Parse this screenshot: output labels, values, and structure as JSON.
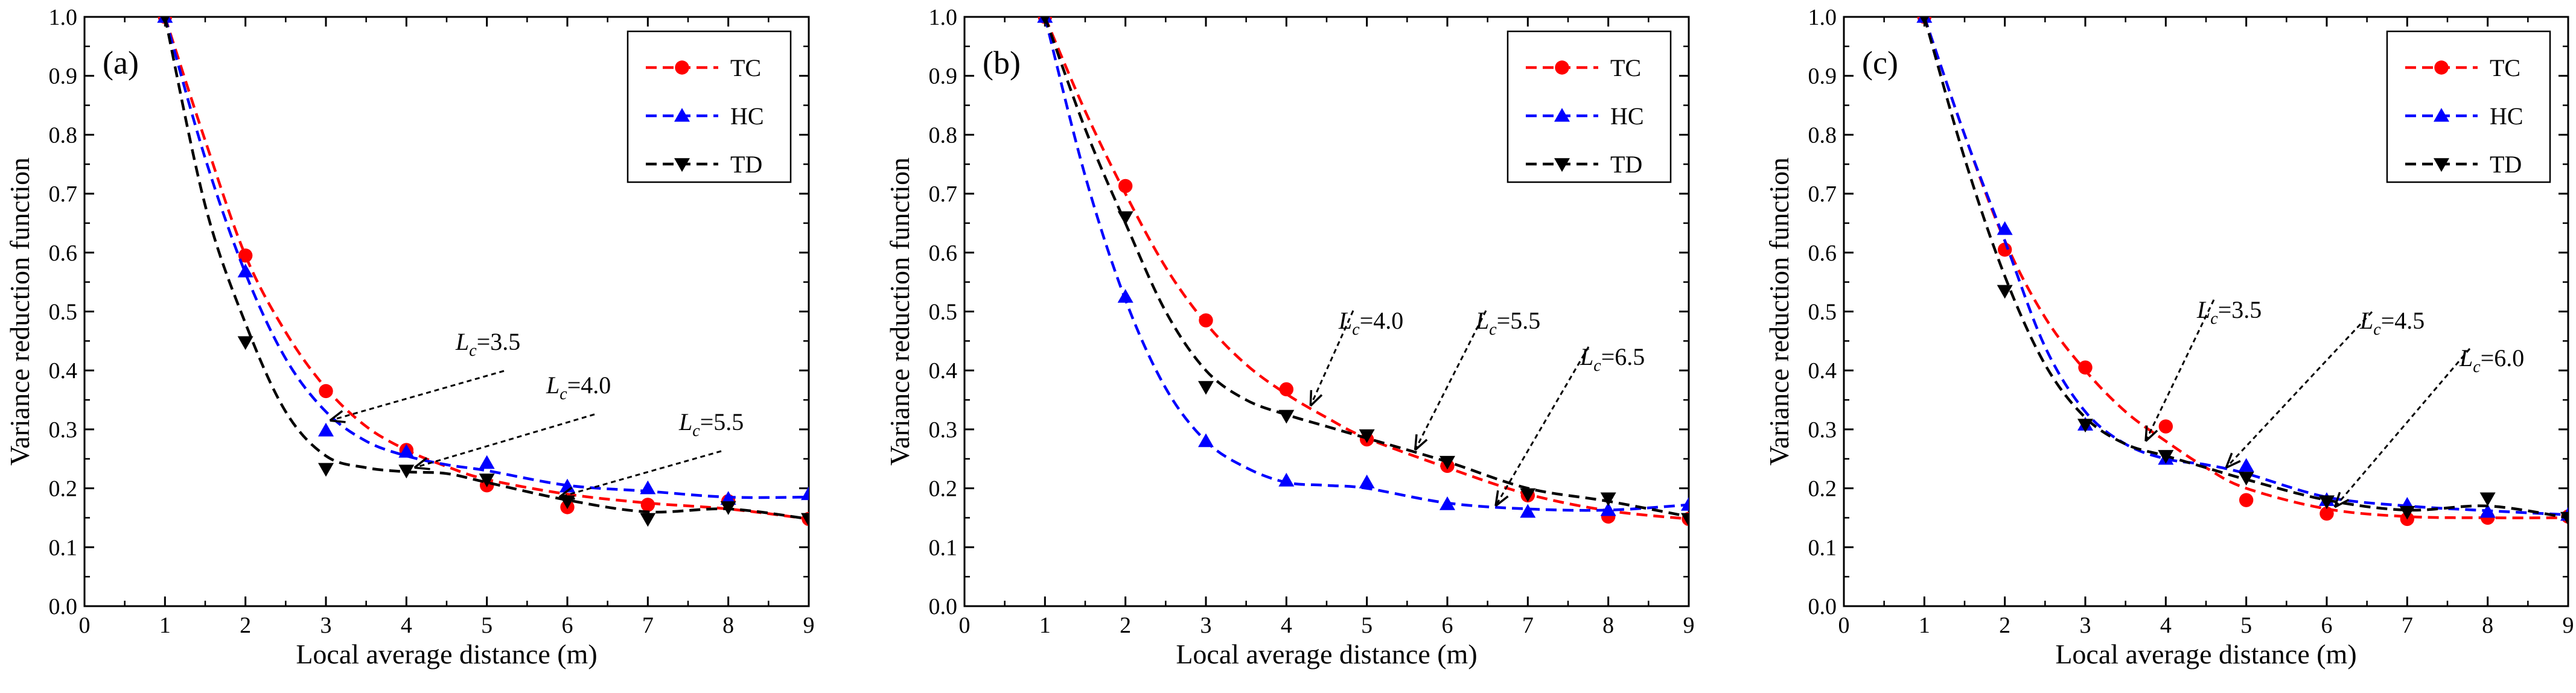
{
  "figure": {
    "panels": [
      {
        "label": "(a)",
        "annotations": [
          {
            "prefix": "L",
            "sub": "c",
            "suffix": "=3.5"
          },
          {
            "prefix": "L",
            "sub": "c",
            "suffix": "=4.0"
          },
          {
            "prefix": "L",
            "sub": "c",
            "suffix": "=5.5"
          }
        ]
      },
      {
        "label": "(b)",
        "annotations": [
          {
            "prefix": "L",
            "sub": "c",
            "suffix": "=4.0"
          },
          {
            "prefix": "L",
            "sub": "c",
            "suffix": "=5.5"
          },
          {
            "prefix": "L",
            "sub": "c",
            "suffix": "=6.5"
          }
        ]
      },
      {
        "label": "(c)",
        "annotations": [
          {
            "prefix": "L",
            "sub": "c",
            "suffix": "=3.5"
          },
          {
            "prefix": "L",
            "sub": "c",
            "suffix": "=4.5"
          },
          {
            "prefix": "L",
            "sub": "c",
            "suffix": "=6.0"
          }
        ]
      }
    ]
  },
  "chart_data": [
    {
      "type": "line",
      "title": "(a)",
      "xlabel": "Local average distance (m)",
      "ylabel": "Variance reduction function",
      "xlim": [
        0,
        9
      ],
      "ylim": [
        0,
        1.0
      ],
      "xticks": [
        "0",
        "1",
        "2",
        "3",
        "4",
        "5",
        "6",
        "7",
        "8",
        "9"
      ],
      "yticks": [
        "0.0",
        "0.1",
        "0.2",
        "0.3",
        "0.4",
        "0.5",
        "0.6",
        "0.7",
        "0.8",
        "0.9",
        "1.0"
      ],
      "legend_position": "top-right",
      "series": [
        {
          "name": "TC",
          "color": "#ff0000",
          "marker": "circle",
          "x": [
            1,
            2,
            3,
            4,
            5,
            6,
            7,
            8,
            9
          ],
          "y": [
            1.0,
            0.595,
            0.365,
            0.265,
            0.205,
            0.168,
            0.172,
            0.178,
            0.148
          ],
          "fit": [
            [
              1,
              1.0
            ],
            [
              1.5,
              0.79
            ],
            [
              2,
              0.595
            ],
            [
              2.5,
              0.465
            ],
            [
              3,
              0.37
            ],
            [
              3.5,
              0.305
            ],
            [
              4,
              0.265
            ],
            [
              4.5,
              0.237
            ],
            [
              5,
              0.215
            ],
            [
              6,
              0.19
            ],
            [
              7,
              0.175
            ],
            [
              8,
              0.165
            ],
            [
              9,
              0.148
            ]
          ]
        },
        {
          "name": "HC",
          "color": "#0000ff",
          "marker": "triangle-up",
          "x": [
            1,
            2,
            3,
            4,
            5,
            6,
            7,
            8,
            9
          ],
          "y": [
            1.0,
            0.568,
            0.298,
            0.262,
            0.243,
            0.203,
            0.2,
            0.182,
            0.19
          ],
          "fit": [
            [
              1,
              1.0
            ],
            [
              1.5,
              0.76
            ],
            [
              2,
              0.565
            ],
            [
              2.5,
              0.42
            ],
            [
              3,
              0.33
            ],
            [
              3.5,
              0.28
            ],
            [
              4,
              0.255
            ],
            [
              4.5,
              0.24
            ],
            [
              5,
              0.23
            ],
            [
              6,
              0.205
            ],
            [
              7,
              0.195
            ],
            [
              8,
              0.185
            ],
            [
              9,
              0.185
            ]
          ]
        },
        {
          "name": "TD",
          "color": "#000000",
          "marker": "triangle-down",
          "x": [
            1,
            2,
            3,
            4,
            5,
            6,
            7,
            8,
            9
          ],
          "y": [
            1.0,
            0.448,
            0.233,
            0.23,
            0.215,
            0.178,
            0.148,
            0.168,
            0.148
          ],
          "fit": [
            [
              1,
              1.0
            ],
            [
              1.5,
              0.68
            ],
            [
              2,
              0.48
            ],
            [
              2.5,
              0.33
            ],
            [
              3,
              0.255
            ],
            [
              3.5,
              0.235
            ],
            [
              4,
              0.228
            ],
            [
              4.5,
              0.225
            ],
            [
              5,
              0.21
            ],
            [
              6,
              0.18
            ],
            [
              7,
              0.16
            ],
            [
              8,
              0.165
            ],
            [
              9,
              0.148
            ]
          ]
        }
      ],
      "annotations": [
        {
          "text": "Lc=3.5",
          "arrow_to": [
            3.05,
            0.315
          ]
        },
        {
          "text": "Lc=4.0",
          "arrow_to": [
            4.1,
            0.235
          ]
        },
        {
          "text": "Lc=5.5",
          "arrow_to": [
            5.9,
            0.185
          ]
        }
      ]
    },
    {
      "type": "line",
      "title": "(b)",
      "xlabel": "Local average distance (m)",
      "ylabel": "Variance reduction function",
      "xlim": [
        0,
        9
      ],
      "ylim": [
        0,
        1.0
      ],
      "xticks": [
        "0",
        "1",
        "2",
        "3",
        "4",
        "5",
        "6",
        "7",
        "8",
        "9"
      ],
      "yticks": [
        "0.0",
        "0.1",
        "0.2",
        "0.3",
        "0.4",
        "0.5",
        "0.6",
        "0.7",
        "0.8",
        "0.9",
        "1.0"
      ],
      "legend_position": "top-right",
      "series": [
        {
          "name": "TC",
          "color": "#ff0000",
          "marker": "circle",
          "x": [
            1,
            2,
            3,
            4,
            5,
            6,
            7,
            8,
            9
          ],
          "y": [
            1.0,
            0.713,
            0.485,
            0.368,
            0.283,
            0.238,
            0.188,
            0.152,
            0.148
          ],
          "fit": [
            [
              1,
              1.0
            ],
            [
              1.5,
              0.84
            ],
            [
              2,
              0.7
            ],
            [
              2.5,
              0.575
            ],
            [
              3,
              0.48
            ],
            [
              3.5,
              0.41
            ],
            [
              4,
              0.36
            ],
            [
              4.5,
              0.32
            ],
            [
              5,
              0.285
            ],
            [
              6,
              0.235
            ],
            [
              7,
              0.19
            ],
            [
              8,
              0.162
            ],
            [
              9,
              0.148
            ]
          ]
        },
        {
          "name": "HC",
          "color": "#0000ff",
          "marker": "triangle-up",
          "x": [
            1,
            2,
            3,
            4,
            5,
            6,
            7,
            8,
            9
          ],
          "y": [
            1.0,
            0.525,
            0.28,
            0.213,
            0.21,
            0.173,
            0.16,
            0.163,
            0.172
          ],
          "fit": [
            [
              1,
              1.0
            ],
            [
              1.5,
              0.73
            ],
            [
              2,
              0.52
            ],
            [
              2.5,
              0.37
            ],
            [
              3,
              0.28
            ],
            [
              3.5,
              0.235
            ],
            [
              4,
              0.21
            ],
            [
              4.5,
              0.205
            ],
            [
              5,
              0.2
            ],
            [
              6,
              0.175
            ],
            [
              7,
              0.165
            ],
            [
              8,
              0.163
            ],
            [
              9,
              0.172
            ]
          ]
        },
        {
          "name": "TD",
          "color": "#000000",
          "marker": "triangle-down",
          "x": [
            1,
            2,
            3,
            4,
            5,
            6,
            7,
            8,
            9
          ],
          "y": [
            1.0,
            0.66,
            0.372,
            0.323,
            0.29,
            0.245,
            0.19,
            0.183,
            0.148
          ],
          "fit": [
            [
              1,
              1.0
            ],
            [
              1.5,
              0.81
            ],
            [
              2,
              0.65
            ],
            [
              2.5,
              0.5
            ],
            [
              3,
              0.4
            ],
            [
              3.5,
              0.35
            ],
            [
              4,
              0.325
            ],
            [
              4.5,
              0.305
            ],
            [
              5,
              0.285
            ],
            [
              6,
              0.245
            ],
            [
              7,
              0.2
            ],
            [
              8,
              0.178
            ],
            [
              9,
              0.152
            ]
          ]
        }
      ],
      "annotations": [
        {
          "text": "Lc=4.0",
          "arrow_to": [
            4.3,
            0.34
          ]
        },
        {
          "text": "Lc=5.5",
          "arrow_to": [
            5.6,
            0.265
          ]
        },
        {
          "text": "Lc=6.5",
          "arrow_to": [
            6.6,
            0.17
          ]
        }
      ]
    },
    {
      "type": "line",
      "title": "(c)",
      "xlabel": "Local average distance (m)",
      "ylabel": "Variance reduction function",
      "xlim": [
        0,
        9
      ],
      "ylim": [
        0,
        1.0
      ],
      "xticks": [
        "0",
        "1",
        "2",
        "3",
        "4",
        "5",
        "6",
        "7",
        "8",
        "9"
      ],
      "yticks": [
        "0.0",
        "0.1",
        "0.2",
        "0.3",
        "0.4",
        "0.5",
        "0.6",
        "0.7",
        "0.8",
        "0.9",
        "1.0"
      ],
      "legend_position": "top-right",
      "series": [
        {
          "name": "TC",
          "color": "#ff0000",
          "marker": "circle",
          "x": [
            1,
            2,
            3,
            4,
            5,
            6,
            7,
            8,
            9
          ],
          "y": [
            1.0,
            0.605,
            0.405,
            0.305,
            0.18,
            0.157,
            0.148,
            0.15,
            0.152
          ],
          "fit": [
            [
              1,
              1.0
            ],
            [
              1.5,
              0.8
            ],
            [
              2,
              0.62
            ],
            [
              2.5,
              0.49
            ],
            [
              3,
              0.4
            ],
            [
              3.5,
              0.33
            ],
            [
              4,
              0.28
            ],
            [
              4.5,
              0.235
            ],
            [
              5,
              0.2
            ],
            [
              6,
              0.165
            ],
            [
              7,
              0.152
            ],
            [
              8,
              0.15
            ],
            [
              9,
              0.15
            ]
          ]
        },
        {
          "name": "HC",
          "color": "#0000ff",
          "marker": "triangle-up",
          "x": [
            1,
            2,
            3,
            4,
            5,
            6,
            7,
            8,
            9
          ],
          "y": [
            1.0,
            0.64,
            0.308,
            0.25,
            0.238,
            0.18,
            0.172,
            0.16,
            0.155
          ],
          "fit": [
            [
              1,
              1.0
            ],
            [
              1.5,
              0.8
            ],
            [
              2,
              0.62
            ],
            [
              2.5,
              0.44
            ],
            [
              3,
              0.33
            ],
            [
              3.5,
              0.275
            ],
            [
              4,
              0.25
            ],
            [
              4.5,
              0.24
            ],
            [
              5,
              0.225
            ],
            [
              6,
              0.185
            ],
            [
              7,
              0.17
            ],
            [
              8,
              0.162
            ],
            [
              9,
              0.155
            ]
          ]
        },
        {
          "name": "TD",
          "color": "#000000",
          "marker": "triangle-down",
          "x": [
            1,
            2,
            3,
            4,
            5,
            6,
            7,
            8,
            9
          ],
          "y": [
            1.0,
            0.535,
            0.308,
            0.255,
            0.218,
            0.178,
            0.16,
            0.183,
            0.15
          ],
          "fit": [
            [
              1,
              1.0
            ],
            [
              1.5,
              0.76
            ],
            [
              2,
              0.56
            ],
            [
              2.5,
              0.41
            ],
            [
              3,
              0.32
            ],
            [
              3.5,
              0.275
            ],
            [
              4,
              0.255
            ],
            [
              4.5,
              0.235
            ],
            [
              5,
              0.215
            ],
            [
              6,
              0.18
            ],
            [
              7,
              0.163
            ],
            [
              8,
              0.17
            ],
            [
              9,
              0.15
            ]
          ]
        }
      ],
      "annotations": [
        {
          "text": "Lc=3.5",
          "arrow_to": [
            3.75,
            0.28
          ]
        },
        {
          "text": "Lc=4.5",
          "arrow_to": [
            4.75,
            0.235
          ]
        },
        {
          "text": "Lc=6.0",
          "arrow_to": [
            6.1,
            0.168
          ]
        }
      ]
    }
  ]
}
